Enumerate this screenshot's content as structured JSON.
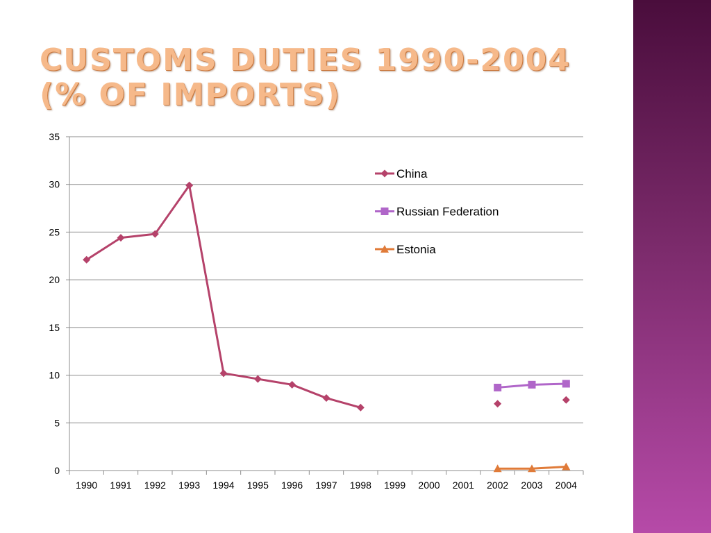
{
  "slide": {
    "title_line1": "CUSTOMS DUTIES 1990-2004",
    "title_line2": "(% OF IMPORTS)"
  },
  "colors": {
    "sidebar_top": "#4a0d3c",
    "sidebar_bottom": "#b64aa8",
    "title": "#f6b98a"
  },
  "chart_data": {
    "type": "line",
    "title": "",
    "xlabel": "",
    "ylabel": "",
    "categories": [
      "1990",
      "1991",
      "1992",
      "1993",
      "1994",
      "1995",
      "1996",
      "1997",
      "1998",
      "1999",
      "2000",
      "2001",
      "2002",
      "2003",
      "2004"
    ],
    "ylim": [
      0,
      35
    ],
    "yticks": [
      0,
      5,
      10,
      15,
      20,
      25,
      30,
      35
    ],
    "grid": true,
    "legend_position": "top-right",
    "series": [
      {
        "name": "China",
        "color": "#b5426a",
        "marker": "diamond",
        "values": [
          22.1,
          24.4,
          24.8,
          29.9,
          10.2,
          9.6,
          9.0,
          7.6,
          6.6,
          null,
          null,
          null,
          7.0,
          null,
          7.4
        ]
      },
      {
        "name": "Russian Federation",
        "color": "#b066c9",
        "marker": "square",
        "values": [
          null,
          null,
          null,
          null,
          null,
          null,
          null,
          null,
          null,
          null,
          null,
          null,
          8.7,
          9.0,
          9.1
        ]
      },
      {
        "name": "Estonia",
        "color": "#e07b39",
        "marker": "triangle",
        "values": [
          null,
          null,
          null,
          null,
          null,
          null,
          null,
          null,
          null,
          null,
          null,
          null,
          0.2,
          0.2,
          0.4
        ]
      }
    ]
  }
}
